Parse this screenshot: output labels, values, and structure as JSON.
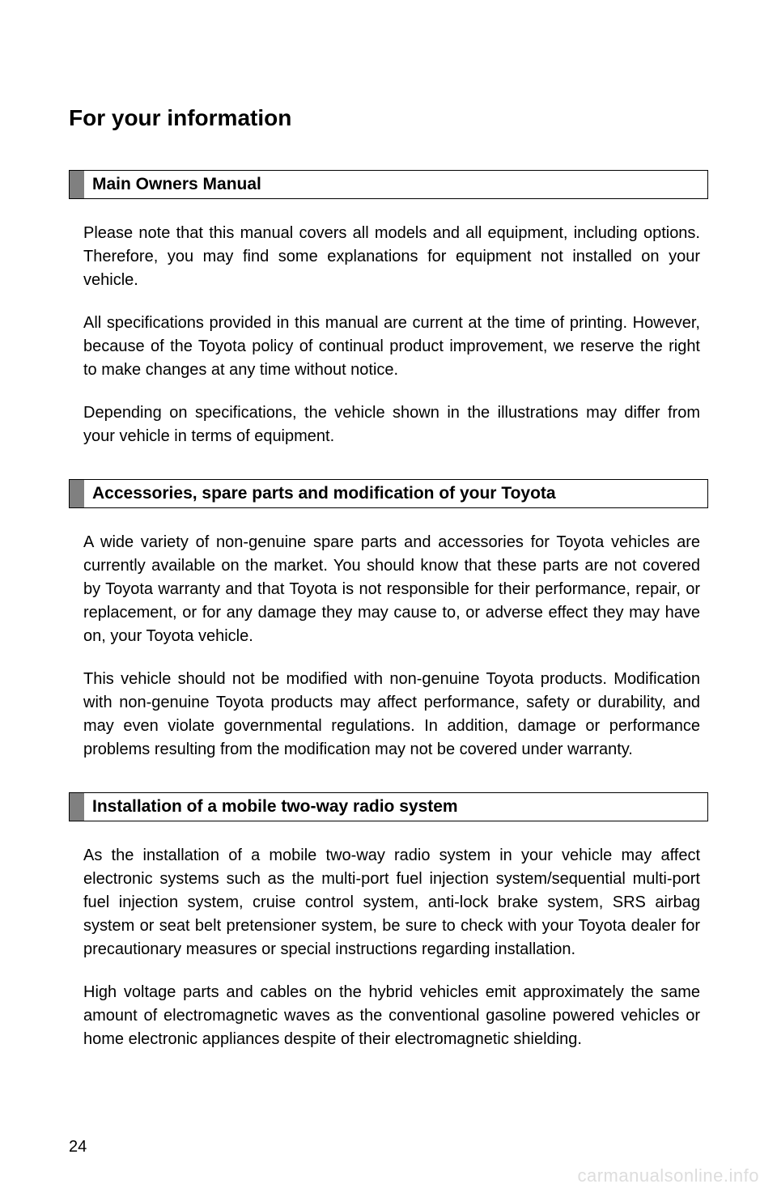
{
  "page": {
    "title": "For your information",
    "number": "24",
    "watermark": "carmanualsonline.info",
    "background_color": "#ffffff",
    "text_color": "#000000",
    "marker_color": "#808080",
    "watermark_color": "#dddddd",
    "title_fontsize": 28,
    "section_title_fontsize": 21,
    "body_fontsize": 20
  },
  "sections": [
    {
      "title": "Main Owners Manual",
      "paragraphs": [
        "Please note that this manual covers all models and all equipment, including options. Therefore, you may find some explanations for equipment not installed on your vehicle.",
        "All specifications provided in this manual are current at the time of printing. However, because of the Toyota policy of continual product improvement, we reserve the right to make changes at any time without notice.",
        "Depending on specifications, the vehicle shown in the illustrations may differ from your vehicle in terms of equipment."
      ]
    },
    {
      "title": "Accessories, spare parts and modification of your Toyota",
      "paragraphs": [
        "A wide variety of non-genuine spare parts and accessories for Toyota vehicles are currently available on the market. You should know that these parts are not covered by Toyota warranty and that Toyota is not responsible for their performance, repair, or replacement, or for any damage they may cause to, or adverse effect they may have on, your Toyota vehicle.",
        "This vehicle should not be modified with non-genuine Toyota products. Modification with non-genuine Toyota products may affect performance, safety or durability, and may even violate governmental regulations. In addition, damage or performance problems resulting from the modification may not be covered under warranty."
      ]
    },
    {
      "title": "Installation of a mobile two-way radio system",
      "paragraphs": [
        "As the installation of a mobile two-way radio system in your vehicle may affect electronic systems such as the multi-port fuel injection system/sequential multi-port fuel injection system, cruise control system, anti-lock brake system, SRS airbag system or seat belt pretensioner system, be sure to check with your Toyota dealer for precautionary measures or special instructions regarding installation.",
        "High voltage parts and cables on the hybrid vehicles emit approximately the same amount of electromagnetic waves as the conventional gasoline powered vehicles or home electronic appliances despite of their electromagnetic shielding."
      ]
    }
  ]
}
